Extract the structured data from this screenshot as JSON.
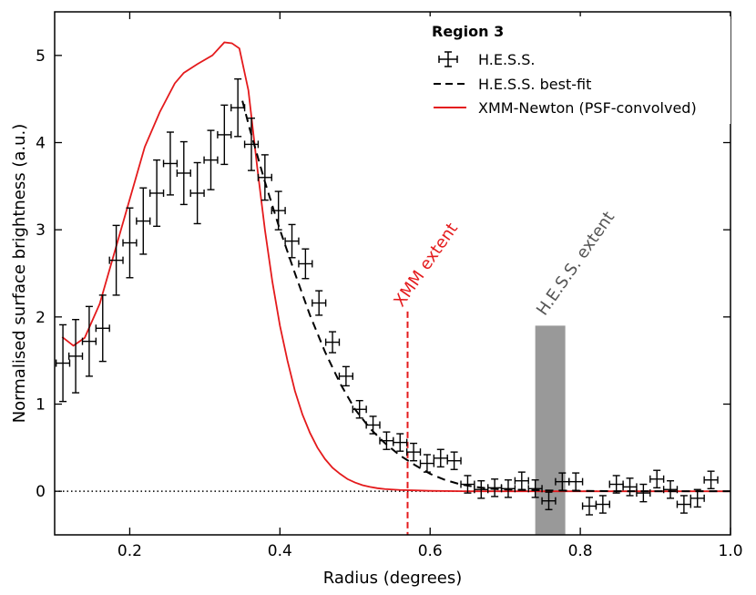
{
  "chart_data": {
    "type": "line",
    "title": "",
    "xlabel": "Radius (degrees)",
    "ylabel": "Normalised surface brightness (a.u.)",
    "xlim": [
      0.1,
      1.0
    ],
    "ylim": [
      -0.5,
      5.5
    ],
    "x_ticks": [
      0.2,
      0.4,
      0.6,
      0.8,
      1.0
    ],
    "x_tick_labels": [
      "0.2",
      "0.4",
      "0.6",
      "0.8",
      "1.0"
    ],
    "y_ticks": [
      0,
      1,
      2,
      3,
      4,
      5
    ],
    "y_tick_labels": [
      "0",
      "1",
      "2",
      "3",
      "4",
      "5"
    ],
    "legend": {
      "title": "Region 3",
      "position": "top-right",
      "entries": [
        "H.E.S.S.",
        "H.E.S.S. best-fit",
        "XMM-Newton (PSF-convolved)"
      ]
    },
    "colors": {
      "hess": "#000000",
      "xmm": "#e41a1c",
      "hess_extent": "#999999"
    },
    "series": [
      {
        "name": "H.E.S.S.",
        "kind": "errorbar",
        "xerr": 0.009,
        "x": [
          0.111,
          0.128,
          0.146,
          0.164,
          0.182,
          0.2,
          0.218,
          0.236,
          0.254,
          0.272,
          0.29,
          0.308,
          0.326,
          0.344,
          0.362,
          0.38,
          0.398,
          0.416,
          0.434,
          0.452,
          0.47,
          0.488,
          0.506,
          0.524,
          0.542,
          0.56,
          0.578,
          0.596,
          0.614,
          0.632,
          0.65,
          0.668,
          0.686,
          0.704,
          0.722,
          0.74,
          0.758,
          0.776,
          0.794,
          0.812,
          0.83,
          0.848,
          0.866,
          0.884,
          0.902,
          0.92,
          0.938,
          0.956,
          0.974
        ],
        "y": [
          1.47,
          1.55,
          1.72,
          1.87,
          2.65,
          2.85,
          3.1,
          3.42,
          3.76,
          3.65,
          3.42,
          3.8,
          4.09,
          4.4,
          3.98,
          3.6,
          3.22,
          2.87,
          2.61,
          2.16,
          1.71,
          1.32,
          0.94,
          0.76,
          0.58,
          0.56,
          0.45,
          0.32,
          0.38,
          0.35,
          0.08,
          0.02,
          0.04,
          0.03,
          0.12,
          0.03,
          -0.11,
          0.11,
          0.11,
          -0.17,
          -0.15,
          0.08,
          0.05,
          -0.02,
          0.14,
          0.02,
          -0.15,
          -0.08,
          0.13
        ],
        "yerr": [
          0.44,
          0.42,
          0.4,
          0.38,
          0.4,
          0.4,
          0.38,
          0.38,
          0.36,
          0.36,
          0.35,
          0.34,
          0.34,
          0.33,
          0.3,
          0.26,
          0.22,
          0.19,
          0.17,
          0.14,
          0.12,
          0.11,
          0.1,
          0.1,
          0.1,
          0.1,
          0.1,
          0.1,
          0.1,
          0.1,
          0.1,
          0.1,
          0.1,
          0.1,
          0.1,
          0.1,
          0.1,
          0.1,
          0.1,
          0.1,
          0.1,
          0.1,
          0.1,
          0.1,
          0.1,
          0.1,
          0.1,
          0.1,
          0.1
        ]
      },
      {
        "name": "H.E.S.S. best-fit",
        "kind": "dashed-line",
        "x": [
          0.35,
          0.36,
          0.38,
          0.4,
          0.42,
          0.44,
          0.46,
          0.48,
          0.5,
          0.52,
          0.54,
          0.56,
          0.58,
          0.6,
          0.62,
          0.64,
          0.66,
          0.68,
          0.7,
          0.75,
          0.8,
          0.85,
          0.9,
          0.95,
          1.0
        ],
        "y": [
          4.48,
          4.15,
          3.55,
          3.0,
          2.5,
          2.02,
          1.6,
          1.24,
          0.94,
          0.72,
          0.55,
          0.41,
          0.3,
          0.2,
          0.13,
          0.08,
          0.05,
          0.03,
          0.02,
          0.01,
          0.005,
          0.0,
          0.0,
          0.0,
          0.0
        ]
      },
      {
        "name": "XMM-Newton (PSF-convolved)",
        "kind": "line",
        "x": [
          0.11,
          0.125,
          0.14,
          0.16,
          0.18,
          0.2,
          0.22,
          0.24,
          0.26,
          0.272,
          0.29,
          0.31,
          0.326,
          0.336,
          0.346,
          0.358,
          0.37,
          0.38,
          0.39,
          0.4,
          0.41,
          0.42,
          0.43,
          0.44,
          0.45,
          0.46,
          0.47,
          0.48,
          0.49,
          0.5,
          0.51,
          0.52,
          0.53,
          0.54,
          0.56,
          0.58,
          0.6,
          0.65,
          0.7,
          0.8,
          0.9,
          1.0
        ],
        "y": [
          1.77,
          1.67,
          1.76,
          2.15,
          2.75,
          3.35,
          3.95,
          4.35,
          4.68,
          4.8,
          4.9,
          5.0,
          5.15,
          5.14,
          5.08,
          4.6,
          3.7,
          3.0,
          2.4,
          1.9,
          1.5,
          1.15,
          0.88,
          0.67,
          0.5,
          0.37,
          0.27,
          0.2,
          0.14,
          0.1,
          0.07,
          0.05,
          0.035,
          0.025,
          0.015,
          0.01,
          0.005,
          0.0,
          0.0,
          0.0,
          0.0,
          0.0
        ]
      },
      {
        "name": "zero-line",
        "kind": "dotted-hline",
        "y": 0
      }
    ],
    "annotations": [
      {
        "text": "XMM extent",
        "x": 0.57,
        "kind": "dashed-vline",
        "y_top": 2.0,
        "color": "#e41a1c",
        "angle": -55
      },
      {
        "text": "H.E.S.S. extent",
        "x_range": [
          0.74,
          0.78
        ],
        "kind": "shaded-band",
        "y_top": 1.9,
        "color": "#999999",
        "angle": -55
      }
    ]
  }
}
